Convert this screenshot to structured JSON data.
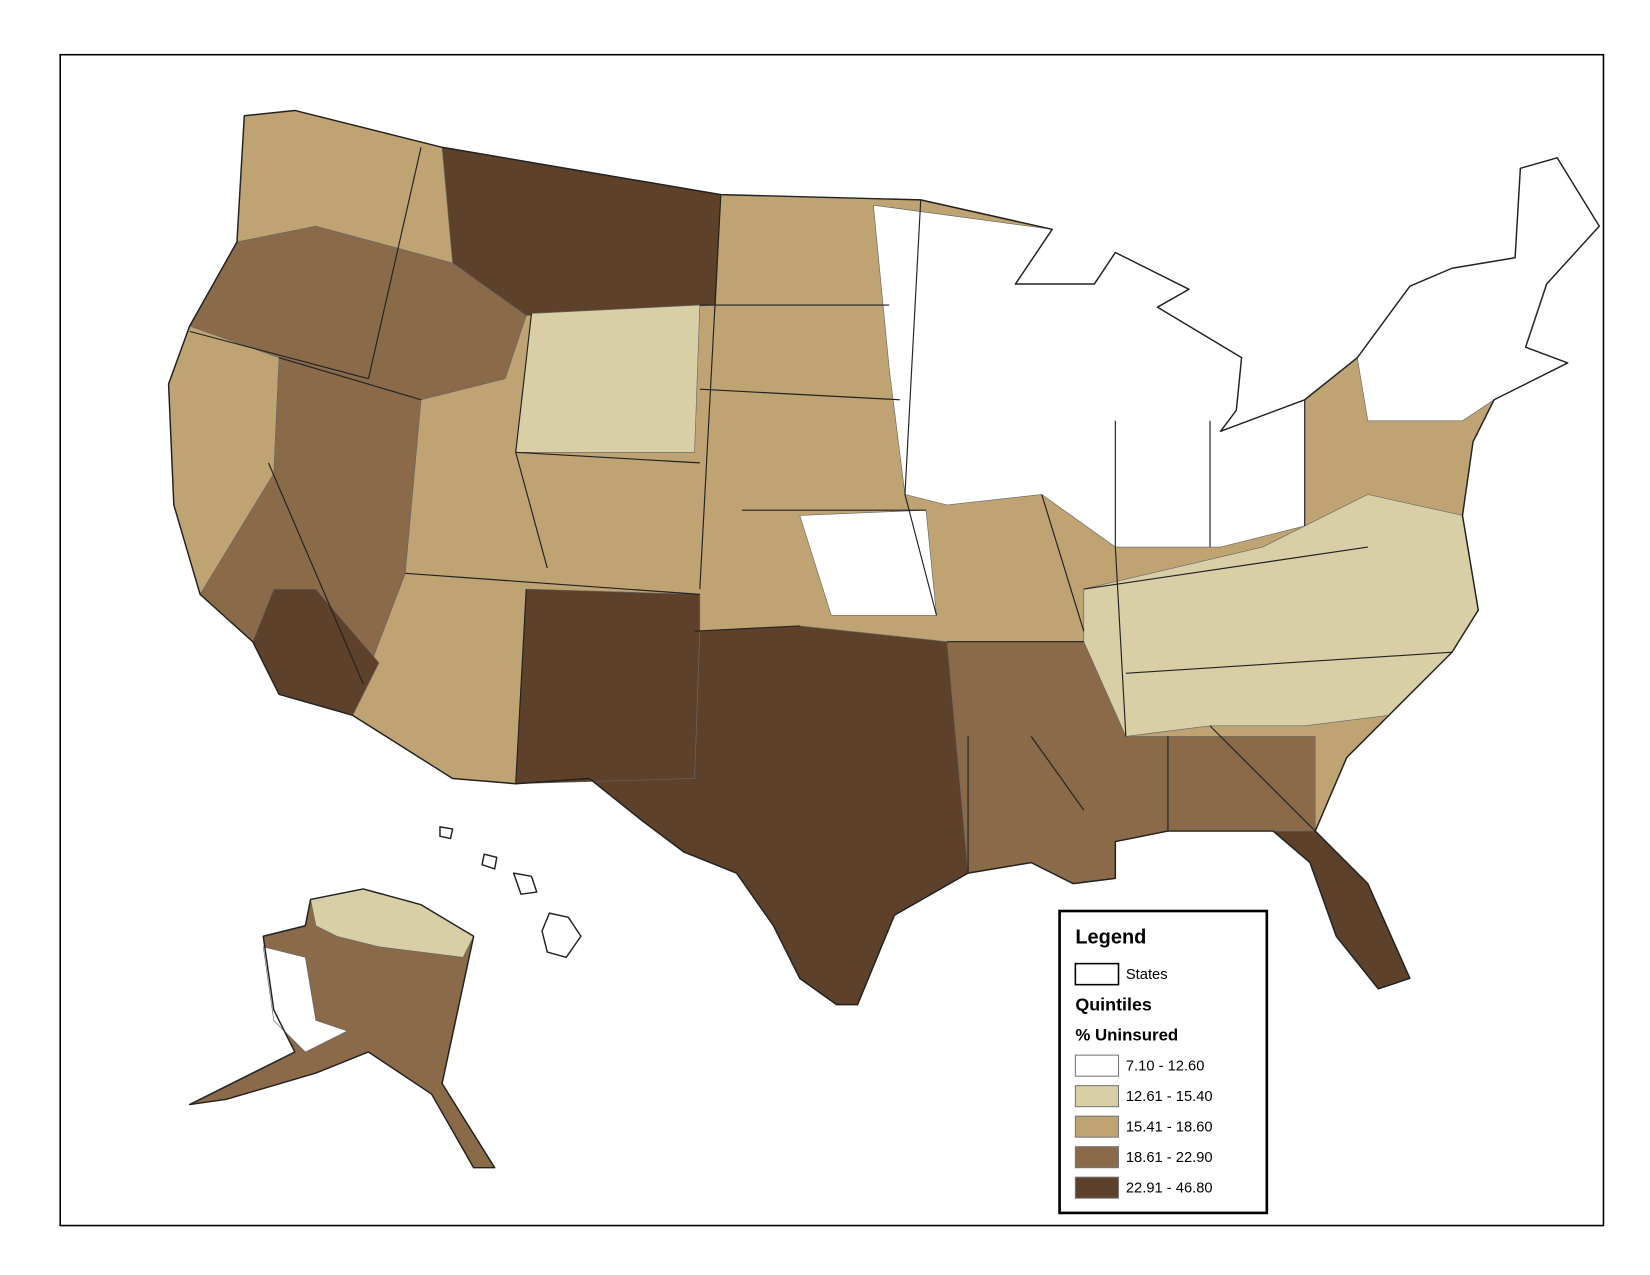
{
  "legend": {
    "title": "Legend",
    "states_label": "States",
    "heading": "Quintiles",
    "subheading": "% Uninsured",
    "classes": [
      {
        "label": "7.10 - 12.60",
        "color": "#ffffff"
      },
      {
        "label": "12.61 - 15.40",
        "color": "#d8cfa6"
      },
      {
        "label": "15.41 - 18.60",
        "color": "#c0a373"
      },
      {
        "label": "18.61 - 22.90",
        "color": "#8a6a49"
      },
      {
        "label": "22.91 - 46.80",
        "color": "#5e412a"
      }
    ]
  }
}
